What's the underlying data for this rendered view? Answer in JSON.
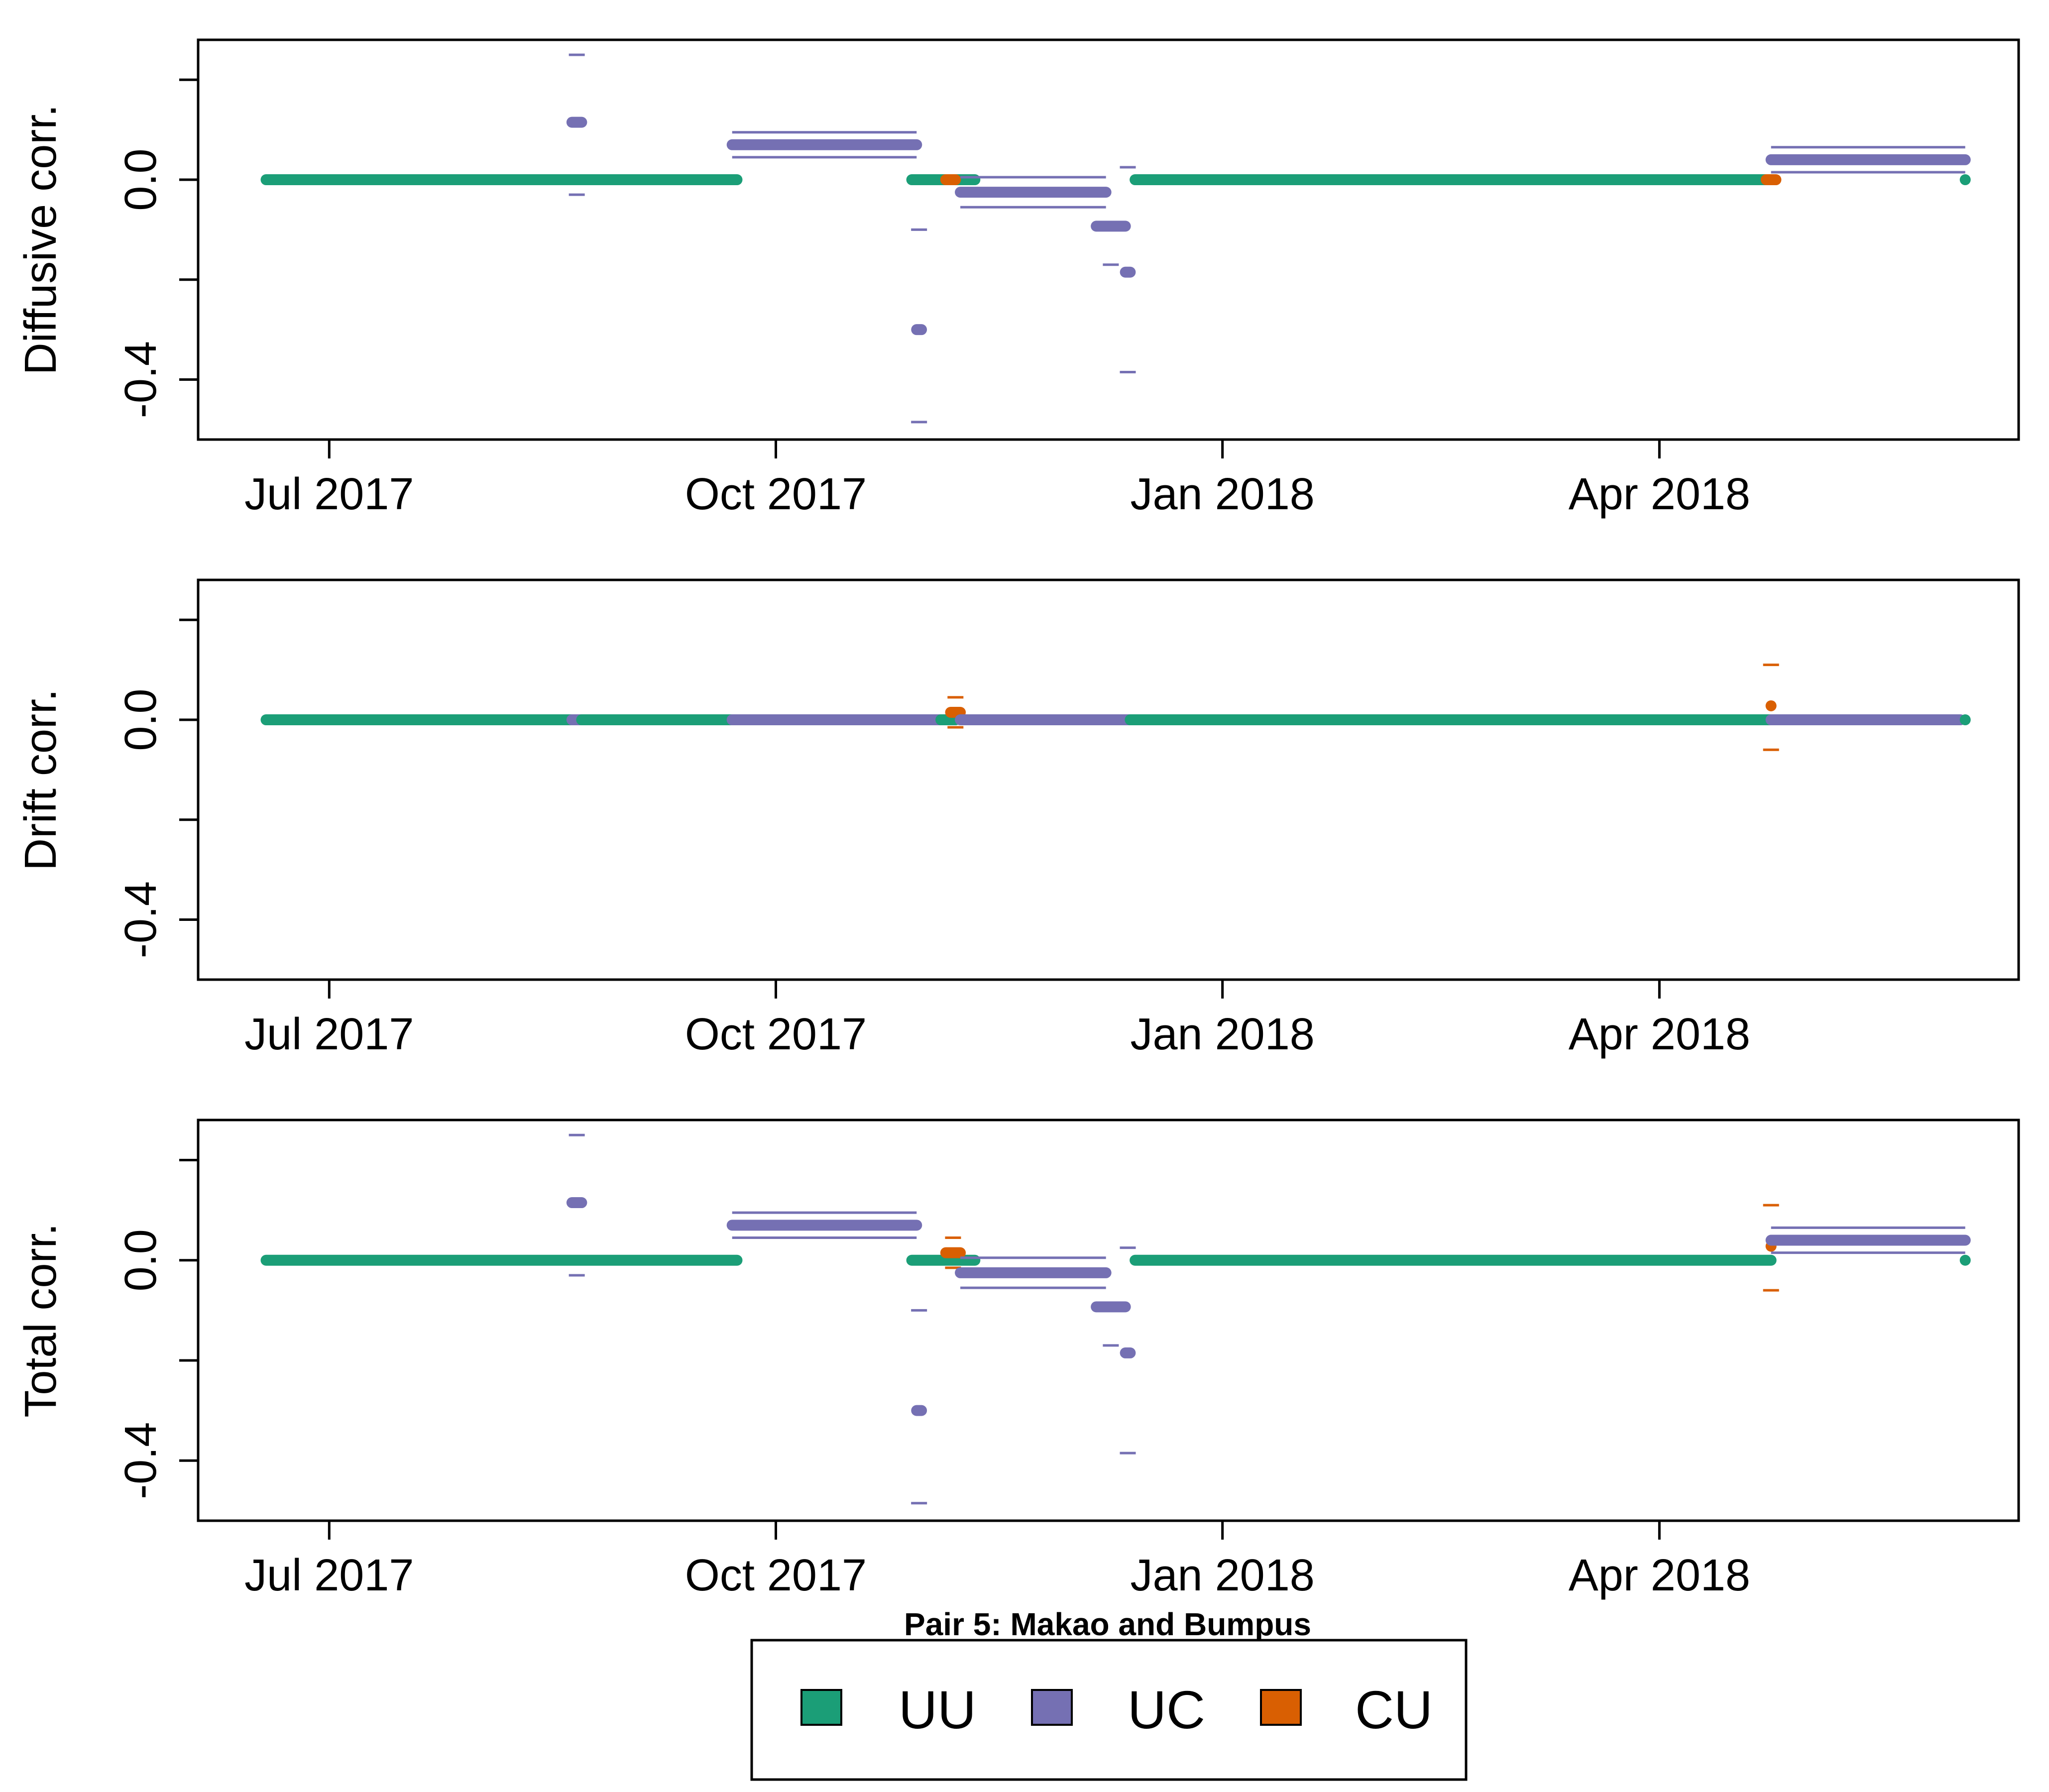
{
  "caption": "Pair 5: Makao and Bumpus",
  "legend": {
    "items": [
      {
        "key": "UU",
        "label": "UU",
        "color": "#1b9e77"
      },
      {
        "key": "UC",
        "label": "UC",
        "color": "#7570b3"
      },
      {
        "key": "CU",
        "label": "CU",
        "color": "#d95f02"
      }
    ]
  },
  "chart_data": [
    {
      "type": "scatter",
      "ylabel": "Diffusive corr.",
      "xlabel": "",
      "title": "",
      "xlim": [
        "2017-06-04",
        "2018-06-14"
      ],
      "ylim": [
        -0.52,
        0.28
      ],
      "x_ticks": [
        {
          "date": "2017-07-01",
          "label": "Jul 2017"
        },
        {
          "date": "2017-10-01",
          "label": "Oct 2017"
        },
        {
          "date": "2018-01-01",
          "label": "Jan 2018"
        },
        {
          "date": "2018-04-01",
          "label": "Apr 2018"
        }
      ],
      "y_ticks": [
        {
          "value": -0.4,
          "label": "-0.4"
        },
        {
          "value": 0.0,
          "label": "0.0"
        }
      ],
      "grid": false,
      "segments": [
        {
          "series": "UU",
          "start": "2017-06-18",
          "end": "2017-09-23",
          "value": 0.0
        },
        {
          "series": "UC",
          "start": "2017-08-20",
          "end": "2017-08-22",
          "value": 0.115,
          "lower": -0.03,
          "upper": 0.25
        },
        {
          "series": "UC",
          "start": "2017-09-22",
          "end": "2017-10-30",
          "value": 0.07,
          "lower": 0.045,
          "upper": 0.095
        },
        {
          "series": "UU",
          "start": "2017-10-29",
          "end": "2017-11-11",
          "value": 0.0
        },
        {
          "series": "UC",
          "start": "2017-10-30",
          "end": "2017-10-31",
          "value": -0.3,
          "lower": -0.485,
          "upper": -0.1
        },
        {
          "series": "CU",
          "start": "2017-11-05",
          "end": "2017-11-07",
          "value": 0.0
        },
        {
          "series": "UC",
          "start": "2017-11-08",
          "end": "2017-12-08",
          "value": -0.025,
          "lower": -0.055,
          "upper": 0.005
        },
        {
          "series": "UC",
          "start": "2017-12-06",
          "end": "2017-12-12",
          "value": -0.093,
          "lower": -0.17,
          "upper": -0.093
        },
        {
          "series": "UC",
          "start": "2017-12-12",
          "end": "2017-12-13",
          "value": -0.185,
          "lower": -0.385,
          "upper": 0.025
        },
        {
          "series": "UU",
          "start": "2017-12-14",
          "end": "2018-04-24",
          "value": 0.0
        },
        {
          "series": "CU",
          "start": "2018-04-23",
          "end": "2018-04-25",
          "value": 0.0
        },
        {
          "series": "UC",
          "start": "2018-04-24",
          "end": "2018-06-03",
          "value": 0.04,
          "lower": 0.015,
          "upper": 0.065
        },
        {
          "series": "UU",
          "start": "2018-06-03",
          "end": "2018-06-03",
          "value": 0.0
        }
      ]
    },
    {
      "type": "scatter",
      "ylabel": "Drift corr.",
      "xlabel": "",
      "title": "",
      "xlim": [
        "2017-06-04",
        "2018-06-14"
      ],
      "ylim": [
        -0.52,
        0.28
      ],
      "x_ticks": [
        {
          "date": "2017-07-01",
          "label": "Jul 2017"
        },
        {
          "date": "2017-10-01",
          "label": "Oct 2017"
        },
        {
          "date": "2018-01-01",
          "label": "Jan 2018"
        },
        {
          "date": "2018-04-01",
          "label": "Apr 2018"
        }
      ],
      "y_ticks": [
        {
          "value": -0.4,
          "label": "-0.4"
        },
        {
          "value": 0.0,
          "label": "0.0"
        }
      ],
      "grid": false,
      "segments": [
        {
          "series": "UU",
          "start": "2017-06-18",
          "end": "2017-08-20",
          "value": 0.0
        },
        {
          "series": "UC",
          "start": "2017-08-20",
          "end": "2017-08-22",
          "value": 0.0
        },
        {
          "series": "UU",
          "start": "2017-08-22",
          "end": "2017-09-22",
          "value": 0.0
        },
        {
          "series": "UC",
          "start": "2017-09-22",
          "end": "2017-11-04",
          "value": 0.0
        },
        {
          "series": "UU",
          "start": "2017-11-04",
          "end": "2017-11-07",
          "value": 0.0
        },
        {
          "series": "CU",
          "start": "2017-11-06",
          "end": "2017-11-08",
          "value": 0.015,
          "lower": -0.015,
          "upper": 0.045
        },
        {
          "series": "UC",
          "start": "2017-11-08",
          "end": "2017-12-13",
          "value": 0.0
        },
        {
          "series": "UU",
          "start": "2017-12-13",
          "end": "2018-04-24",
          "value": 0.0
        },
        {
          "series": "CU",
          "start": "2018-04-24",
          "end": "2018-04-24",
          "value": 0.028,
          "lower": -0.06,
          "upper": 0.11
        },
        {
          "series": "UC",
          "start": "2018-04-24",
          "end": "2018-06-02",
          "value": 0.0
        },
        {
          "series": "UU",
          "start": "2018-06-03",
          "end": "2018-06-03",
          "value": 0.0
        }
      ]
    },
    {
      "type": "scatter",
      "ylabel": "Total corr.",
      "xlabel": "",
      "title": "",
      "xlim": [
        "2017-06-04",
        "2018-06-14"
      ],
      "ylim": [
        -0.52,
        0.28
      ],
      "x_ticks": [
        {
          "date": "2017-07-01",
          "label": "Jul 2017"
        },
        {
          "date": "2017-10-01",
          "label": "Oct 2017"
        },
        {
          "date": "2018-01-01",
          "label": "Jan 2018"
        },
        {
          "date": "2018-04-01",
          "label": "Apr 2018"
        }
      ],
      "y_ticks": [
        {
          "value": -0.4,
          "label": "-0.4"
        },
        {
          "value": 0.0,
          "label": "0.0"
        }
      ],
      "grid": false,
      "segments": [
        {
          "series": "UU",
          "start": "2017-06-18",
          "end": "2017-09-23",
          "value": 0.0
        },
        {
          "series": "UC",
          "start": "2017-08-20",
          "end": "2017-08-22",
          "value": 0.115,
          "lower": -0.03,
          "upper": 0.25
        },
        {
          "series": "UC",
          "start": "2017-09-22",
          "end": "2017-10-30",
          "value": 0.07,
          "lower": 0.045,
          "upper": 0.095
        },
        {
          "series": "UU",
          "start": "2017-10-29",
          "end": "2017-11-11",
          "value": 0.0
        },
        {
          "series": "UC",
          "start": "2017-10-30",
          "end": "2017-10-31",
          "value": -0.3,
          "lower": -0.485,
          "upper": -0.1
        },
        {
          "series": "CU",
          "start": "2017-11-05",
          "end": "2017-11-08",
          "value": 0.015,
          "lower": -0.015,
          "upper": 0.045
        },
        {
          "series": "UC",
          "start": "2017-11-08",
          "end": "2017-12-08",
          "value": -0.025,
          "lower": -0.055,
          "upper": 0.005
        },
        {
          "series": "UC",
          "start": "2017-12-06",
          "end": "2017-12-12",
          "value": -0.093,
          "lower": -0.17,
          "upper": -0.093
        },
        {
          "series": "UC",
          "start": "2017-12-12",
          "end": "2017-12-13",
          "value": -0.185,
          "lower": -0.385,
          "upper": 0.025
        },
        {
          "series": "UU",
          "start": "2017-12-14",
          "end": "2018-04-24",
          "value": 0.0
        },
        {
          "series": "CU",
          "start": "2018-04-24",
          "end": "2018-04-24",
          "value": 0.028,
          "lower": -0.06,
          "upper": 0.11
        },
        {
          "series": "UC",
          "start": "2018-04-24",
          "end": "2018-06-03",
          "value": 0.04,
          "lower": 0.015,
          "upper": 0.065
        },
        {
          "series": "UU",
          "start": "2018-06-03",
          "end": "2018-06-03",
          "value": 0.0
        }
      ]
    }
  ]
}
